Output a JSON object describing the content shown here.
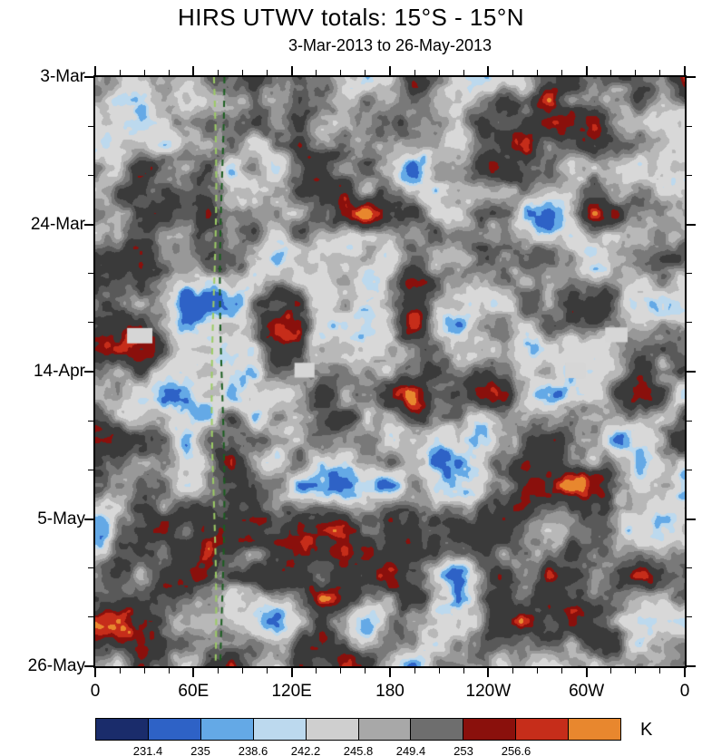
{
  "chart_data": {
    "type": "heatmap",
    "title": "HIRS UTWV totals: 15°S - 15°N",
    "subtitle": "3-Mar-2013 to 26-May-2013",
    "x_axis": {
      "tick_labels": [
        "0",
        "60E",
        "120E",
        "180",
        "120W",
        "60W",
        "0"
      ],
      "range_deg": [
        0,
        360
      ],
      "minor_tick_interval_deg": 15
    },
    "y_axis": {
      "tick_labels": [
        "3-Mar",
        "24-Mar",
        "14-Apr",
        "5-May",
        "26-May"
      ],
      "start_date": "3-Mar-2013",
      "end_date": "26-May-2013",
      "major_tick_interval_days": 21,
      "minor_tick_interval_days": 7,
      "direction": "time increases downward"
    },
    "colorbar": {
      "unit": "K",
      "tick_labels": [
        "231.4",
        "235",
        "238.6",
        "242.2",
        "245.8",
        "249.4",
        "253",
        "256.6"
      ],
      "colors": [
        "#1a2c6b",
        "#2e62c6",
        "#64a9e6",
        "#bcd9ee",
        "#cfcfcf",
        "#a8a8a8",
        "#6e6e6e",
        "#8a100c",
        "#c62d1a",
        "#e8872e"
      ],
      "orientation": "horizontal"
    },
    "field": {
      "description": "Filled-contour Hovmoller field of HIRS upper-tropospheric water-vapor brightness temperature: mostly gray mid-range values with isolated blue minima blobs and dark-red/red/orange maxima blobs",
      "approx_value_range_K": [
        228,
        260
      ]
    },
    "track_lines": [
      {
        "longitude_deg_east": 72.5,
        "color": "#9ccc65",
        "style": "dashed"
      },
      {
        "longitude_deg_east": 77.5,
        "color": "#1b5e20",
        "style": "dashed"
      }
    ],
    "missing_data_regions": [
      {
        "x_frac": 0.054,
        "y_frac": 0.426,
        "w_frac": 0.043,
        "h_frac": 0.026
      },
      {
        "x_frac": 0.338,
        "y_frac": 0.485,
        "w_frac": 0.034,
        "h_frac": 0.025
      },
      {
        "x_frac": 0.797,
        "y_frac": 0.485,
        "w_frac": 0.034,
        "h_frac": 0.026
      },
      {
        "x_frac": 0.865,
        "y_frac": 0.425,
        "w_frac": 0.038,
        "h_frac": 0.025
      }
    ]
  }
}
